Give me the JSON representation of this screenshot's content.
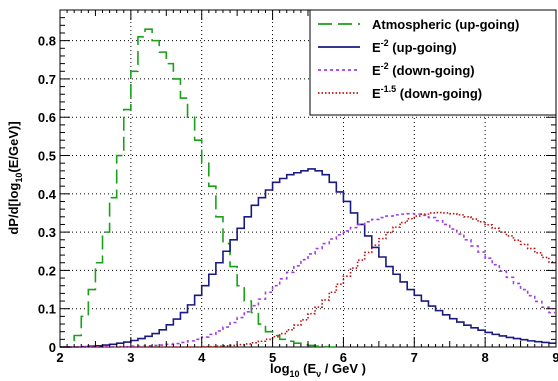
{
  "chart_data": {
    "type": "line",
    "title": "",
    "xlabel": {
      "main": "log",
      "sub": "10",
      "rest": " (E",
      "sub2": "ν",
      "tail": " / GeV )"
    },
    "ylabel": {
      "main": "dP/d[log",
      "sub": "10",
      "tail": "(E/GeV)]"
    },
    "xlim": [
      2,
      9
    ],
    "ylim": [
      0,
      0.88
    ],
    "xticks": [
      2,
      3,
      4,
      5,
      6,
      7,
      8,
      9
    ],
    "yticks": [
      0,
      0.1,
      0.2,
      0.3,
      0.4,
      0.5,
      0.6,
      0.7,
      0.8
    ],
    "ytick_labels": [
      "0",
      "0.1",
      "0.2",
      "0.3",
      "0.4",
      "0.5",
      "0.6",
      "0.7",
      "0.8"
    ],
    "grid": true,
    "legend_position": "top-right",
    "bin_width": 0.1,
    "series": [
      {
        "name": "Atmospheric (up-going)",
        "legend_text": {
          "pre": "Atmospheric (up-going)",
          "sup": "",
          "post": ""
        },
        "color": "#1aa01a",
        "dash": "14,6",
        "x_start": 2.0,
        "values": [
          0.0,
          0.0,
          0.03,
          0.08,
          0.15,
          0.22,
          0.3,
          0.39,
          0.5,
          0.62,
          0.72,
          0.81,
          0.83,
          0.8,
          0.77,
          0.74,
          0.7,
          0.65,
          0.6,
          0.54,
          0.48,
          0.42,
          0.34,
          0.27,
          0.21,
          0.16,
          0.12,
          0.09,
          0.06,
          0.04,
          0.03,
          0.02,
          0.015,
          0.01,
          0.006,
          0.004,
          0.002,
          0.001,
          0.0,
          0.0
        ]
      },
      {
        "name": "E^-2 (up-going)",
        "legend_text": {
          "pre": "E",
          "sup": "-2",
          "post": " (up-going)"
        },
        "color": "#1a1a80",
        "dash": "",
        "x_start": 2.0,
        "values": [
          0.0,
          0.0,
          0.0,
          0.001,
          0.002,
          0.003,
          0.005,
          0.007,
          0.01,
          0.013,
          0.017,
          0.022,
          0.028,
          0.035,
          0.045,
          0.058,
          0.073,
          0.09,
          0.11,
          0.135,
          0.16,
          0.19,
          0.22,
          0.25,
          0.28,
          0.31,
          0.34,
          0.37,
          0.39,
          0.41,
          0.43,
          0.44,
          0.45,
          0.455,
          0.46,
          0.465,
          0.46,
          0.45,
          0.43,
          0.405,
          0.38,
          0.35,
          0.32,
          0.29,
          0.26,
          0.235,
          0.21,
          0.19,
          0.17,
          0.15,
          0.135,
          0.12,
          0.107,
          0.095,
          0.084,
          0.074,
          0.065,
          0.057,
          0.05,
          0.044,
          0.038,
          0.033,
          0.029,
          0.025,
          0.022,
          0.019,
          0.016,
          0.014,
          0.012,
          0.01
        ]
      },
      {
        "name": "E^-2 (down-going)",
        "legend_text": {
          "pre": "E",
          "sup": "-2",
          "post": " (down-going)"
        },
        "color": "#a040e0",
        "dash": "3,3",
        "x_start": 2.0,
        "values": [
          0.0,
          0.0,
          0.0,
          0.0,
          0.0,
          0.0,
          0.0,
          0.0,
          0.001,
          0.001,
          0.002,
          0.002,
          0.003,
          0.004,
          0.005,
          0.007,
          0.009,
          0.012,
          0.016,
          0.02,
          0.026,
          0.033,
          0.042,
          0.052,
          0.064,
          0.077,
          0.092,
          0.108,
          0.125,
          0.143,
          0.16,
          0.178,
          0.195,
          0.212,
          0.228,
          0.243,
          0.257,
          0.27,
          0.282,
          0.293,
          0.303,
          0.312,
          0.32,
          0.327,
          0.333,
          0.338,
          0.342,
          0.345,
          0.347,
          0.348,
          0.347,
          0.344,
          0.338,
          0.33,
          0.32,
          0.308,
          0.295,
          0.28,
          0.264,
          0.248,
          0.232,
          0.215,
          0.198,
          0.182,
          0.166,
          0.15,
          0.134,
          0.119,
          0.104,
          0.09
        ]
      },
      {
        "name": "E^-1.5 (down-going)",
        "legend_text": {
          "pre": "E",
          "sup": "-1.5",
          "post": " (down-going)"
        },
        "color": "#c01010",
        "dash": "1.5,2",
        "x_start": 2.0,
        "values": [
          0.0,
          0.0,
          0.0,
          0.0,
          0.0,
          0.0,
          0.0,
          0.0,
          0.0,
          0.0,
          0.0,
          0.0,
          0.0,
          0.0,
          0.0,
          0.0,
          0.0,
          0.0,
          0.0,
          0.0,
          0.001,
          0.001,
          0.002,
          0.003,
          0.004,
          0.006,
          0.008,
          0.011,
          0.015,
          0.02,
          0.027,
          0.035,
          0.045,
          0.057,
          0.071,
          0.087,
          0.104,
          0.123,
          0.143,
          0.164,
          0.185,
          0.206,
          0.227,
          0.247,
          0.266,
          0.283,
          0.299,
          0.313,
          0.325,
          0.335,
          0.342,
          0.347,
          0.35,
          0.351,
          0.35,
          0.348,
          0.345,
          0.34,
          0.334,
          0.327,
          0.319,
          0.31,
          0.3,
          0.29,
          0.279,
          0.268,
          0.257,
          0.246,
          0.234,
          0.222
        ]
      }
    ]
  }
}
